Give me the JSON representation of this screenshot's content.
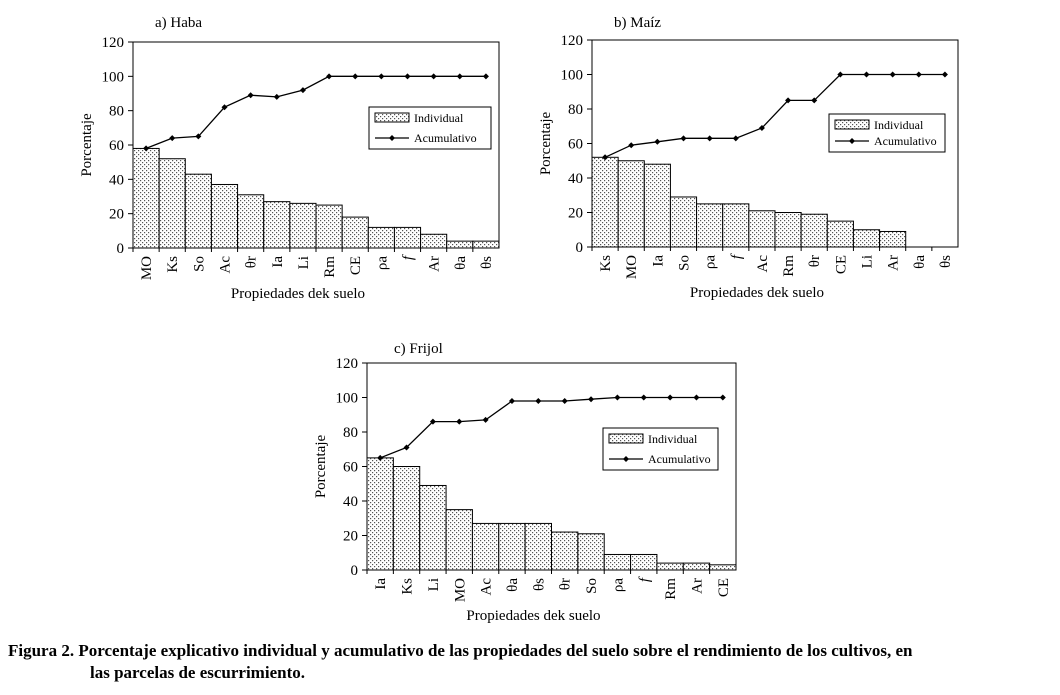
{
  "chart_data": [
    {
      "type": "bar",
      "title": "a) Haba",
      "xlabel": "Propiedades dek suelo",
      "ylabel": "Porcentaje",
      "ylim": [
        0,
        120
      ],
      "yticks": [
        "0",
        "20",
        "40",
        "60",
        "80",
        "100",
        "120"
      ],
      "categories": [
        "MO",
        "Ks",
        "So",
        "Ac",
        "θr",
        "Ia",
        "Li",
        "Rm",
        "CE",
        "ρa",
        "f",
        "Ar",
        "θa",
        "θs"
      ],
      "legend": [
        "Individual",
        "Acumulativo"
      ],
      "legend_position": "right",
      "series": [
        {
          "name": "Individual",
          "kind": "bar",
          "values": [
            58,
            52,
            43,
            37,
            31,
            27,
            26,
            25,
            18,
            12,
            12,
            8,
            4,
            4
          ]
        },
        {
          "name": "Acumulativo",
          "kind": "line",
          "values": [
            58,
            64,
            65,
            82,
            89,
            88,
            92,
            100,
            100,
            100,
            100,
            100,
            100,
            100
          ]
        }
      ]
    },
    {
      "type": "bar",
      "title": "b) Maíz",
      "xlabel": "Propiedades dek suelo",
      "ylabel": "Porcentaje",
      "ylim": [
        0,
        120
      ],
      "yticks": [
        "0",
        "20",
        "40",
        "60",
        "80",
        "100",
        "120"
      ],
      "categories": [
        "Ks",
        "MO",
        "Ia",
        "So",
        "ρa",
        "f",
        "Ac",
        "Rm",
        "θr",
        "CE",
        "Li",
        "Ar",
        "θa",
        "θs"
      ],
      "legend": [
        "Individual",
        "Acumulativo"
      ],
      "legend_position": "right",
      "series": [
        {
          "name": "Individual",
          "kind": "bar",
          "values": [
            52,
            50,
            48,
            29,
            25,
            25,
            21,
            20,
            19,
            15,
            10,
            9,
            0,
            0
          ]
        },
        {
          "name": "Acumulativo",
          "kind": "line",
          "values": [
            52,
            59,
            61,
            63,
            63,
            63,
            69,
            85,
            85,
            100,
            100,
            100,
            100,
            100
          ]
        }
      ]
    },
    {
      "type": "bar",
      "title": "c) Frijol",
      "xlabel": "Propiedades dek suelo",
      "ylabel": "Porcentaje",
      "ylim": [
        0,
        120
      ],
      "yticks": [
        "0",
        "20",
        "40",
        "60",
        "80",
        "100",
        "120"
      ],
      "categories": [
        "Ia",
        "Ks",
        "Li",
        "MO",
        "Ac",
        "θa",
        "θs",
        "θr",
        "So",
        "ρa",
        "f",
        "Rm",
        "Ar",
        "CE"
      ],
      "legend": [
        "Individual",
        "Acumulativo"
      ],
      "legend_position": "right",
      "series": [
        {
          "name": "Individual",
          "kind": "bar",
          "values": [
            65,
            60,
            49,
            35,
            27,
            27,
            27,
            22,
            21,
            9,
            9,
            4,
            4,
            3
          ]
        },
        {
          "name": "Acumulativo",
          "kind": "line",
          "values": [
            65,
            71,
            86,
            86,
            87,
            98,
            98,
            98,
            99,
            100,
            100,
            100,
            100,
            100
          ]
        }
      ]
    }
  ],
  "caption": {
    "line1": "Figura 2. Porcentaje explicativo individual y acumulativo de las propiedades del suelo sobre el rendimiento de los cultivos, en",
    "line2": "las parcelas de escurrimiento."
  }
}
